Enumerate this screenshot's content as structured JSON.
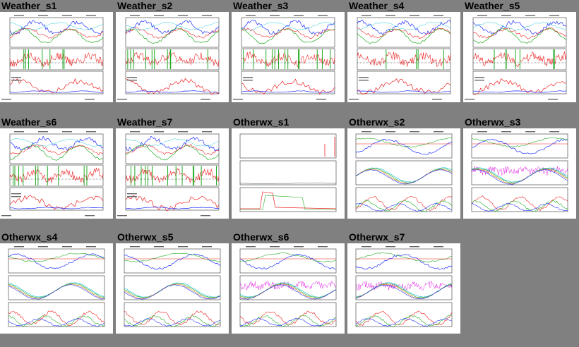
{
  "gallery": {
    "tiles": [
      {
        "title": "Weather_s1",
        "layout": "weather",
        "variant": 1
      },
      {
        "title": "Weather_s2",
        "layout": "weather",
        "variant": 2
      },
      {
        "title": "Weather_s3",
        "layout": "weather",
        "variant": 3
      },
      {
        "title": "Weather_s4",
        "layout": "weather",
        "variant": 4
      },
      {
        "title": "Weather_s5",
        "layout": "weather",
        "variant": 5
      },
      {
        "title": "Weather_s6",
        "layout": "weather",
        "variant": 6
      },
      {
        "title": "Weather_s7",
        "layout": "weather",
        "variant": 7
      },
      {
        "title": "Otherwx_s1",
        "layout": "otherwx_sparse",
        "variant": 1
      },
      {
        "title": "Otherwx_s2",
        "layout": "otherwx",
        "variant": 2
      },
      {
        "title": "Otherwx_s3",
        "layout": "otherwx_magenta",
        "variant": 3
      },
      {
        "title": "Otherwx_s4",
        "layout": "otherwx",
        "variant": 4
      },
      {
        "title": "Otherwx_s5",
        "layout": "otherwx",
        "variant": 5
      },
      {
        "title": "Otherwx_s6",
        "layout": "otherwx_magenta",
        "variant": 6
      },
      {
        "title": "Otherwx_s7",
        "layout": "otherwx_magenta",
        "variant": 7
      }
    ]
  },
  "colors": {
    "page_background": "#808080",
    "thumbnail_background": "#ffffff",
    "series_blue": "#1f2fff",
    "series_green": "#22aa22",
    "series_red": "#ee2222",
    "series_cyan": "#22c8d8",
    "series_magenta": "#e020e0",
    "series_orange": "#e07a10"
  }
}
